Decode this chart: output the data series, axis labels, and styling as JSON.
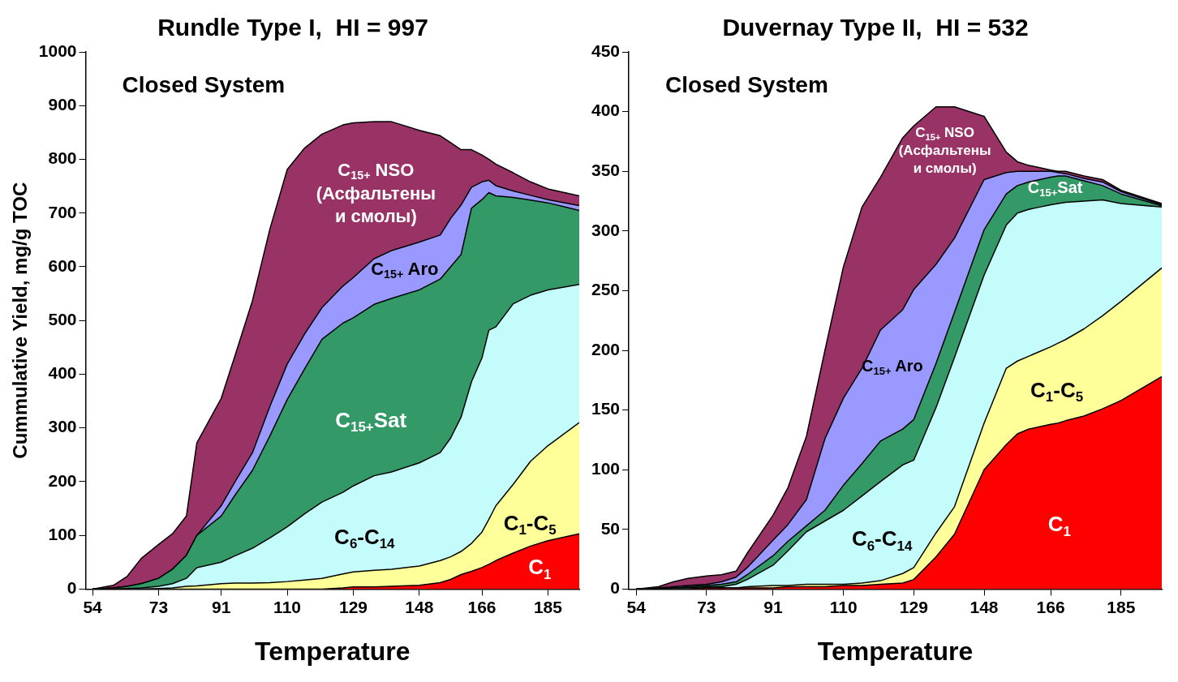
{
  "chart_data": [
    {
      "type": "area",
      "stacked": true,
      "title": "Rundle Type I,  HI = 997",
      "xlabel": "Temperature",
      "ylabel": "Cummulative Yield, mg/g TOC",
      "annotations": [
        "Closed System"
      ],
      "grid": false,
      "legend": false,
      "x": [
        54,
        60,
        64,
        68,
        73,
        77,
        81,
        84,
        91,
        95,
        100,
        105,
        110,
        115,
        120,
        126,
        129,
        135,
        140,
        148,
        154,
        157,
        160,
        163,
        166,
        168,
        170,
        175,
        180,
        185,
        194
      ],
      "xlim": [
        52,
        194
      ],
      "xticks": [
        54,
        73,
        91,
        110,
        129,
        148,
        166,
        185
      ],
      "ylim": [
        0,
        1000
      ],
      "yticks": [
        0,
        100,
        200,
        300,
        400,
        500,
        600,
        700,
        800,
        900,
        1000
      ],
      "series": [
        {
          "name": "C$_{1}$",
          "color": "#ff0000",
          "values": [
            0,
            0,
            0,
            0,
            0,
            0,
            0,
            0,
            0,
            0,
            0,
            0,
            0,
            0,
            0,
            2,
            4,
            4,
            5,
            7,
            12,
            18,
            27,
            33,
            40,
            46,
            53,
            67,
            80,
            90,
            103
          ]
        },
        {
          "name": "C$_{1}$-C$_{5}$",
          "color": "#ffff99",
          "values": [
            0,
            0,
            0,
            0,
            1,
            2,
            5,
            6,
            10,
            11,
            11,
            12,
            14,
            17,
            20,
            26,
            28,
            31,
            32,
            36,
            41,
            42,
            43,
            52,
            66,
            84,
            102,
            128,
            158,
            177,
            207
          ]
        },
        {
          "name": "C$_{6}$-C$_{14}$",
          "color": "#c4fcfc",
          "values": [
            0,
            0,
            1,
            2,
            4,
            8,
            15,
            34,
            40,
            51,
            65,
            83,
            102,
            123,
            142,
            152,
            160,
            176,
            181,
            192,
            201,
            221,
            250,
            301,
            324,
            352,
            333,
            336,
            309,
            290,
            257
          ]
        },
        {
          "name": "C$_{15+}$Sat",
          "color": "#339966",
          "values": [
            0,
            2,
            4,
            8,
            15,
            27,
            43,
            60,
            86,
            113,
            145,
            190,
            237,
            270,
            303,
            315,
            313,
            319,
            323,
            322,
            323,
            319,
            303,
            323,
            295,
            256,
            244,
            198,
            177,
            162,
            138
          ]
        },
        {
          "name": "C$_{15+}$ Aro",
          "color": "#9999ff",
          "values": [
            0,
            0,
            0,
            0,
            0,
            0,
            0,
            0,
            19,
            25,
            33,
            55,
            66,
            65,
            59,
            69,
            75,
            85,
            89,
            89,
            82,
            90,
            92,
            39,
            33,
            23,
            19,
            12,
            9,
            6,
            9
          ]
        },
        {
          "name": "C$_{15+}$ NSO\n(Асфальтены\nи смолы)",
          "color": "#993366",
          "values": [
            0,
            5,
            19,
            47,
            63,
            66,
            73,
            172,
            200,
            235,
            283,
            330,
            362,
            346,
            323,
            300,
            288,
            255,
            240,
            208,
            185,
            141,
            103,
            70,
            50,
            39,
            40,
            34,
            25,
            20,
            18
          ]
        }
      ]
    },
    {
      "type": "area",
      "stacked": true,
      "title": "Duvernay Type II,  HI = 532",
      "xlabel": "Temperature",
      "annotations": [
        "Closed System"
      ],
      "grid": false,
      "legend": false,
      "x": [
        54,
        60,
        64,
        68,
        73,
        77,
        81,
        84,
        91,
        95,
        100,
        105,
        110,
        115,
        120,
        126,
        129,
        135,
        140,
        148,
        154,
        157,
        160,
        163,
        166,
        168,
        170,
        175,
        180,
        185,
        196
      ],
      "xlim": [
        52,
        196
      ],
      "xticks": [
        54,
        73,
        91,
        110,
        129,
        148,
        166,
        185
      ],
      "ylim": [
        0,
        450
      ],
      "yticks": [
        0,
        50,
        100,
        150,
        200,
        250,
        300,
        350,
        400,
        450
      ],
      "series": [
        {
          "name": "C$_{1}$",
          "color": "#ff0000",
          "values": [
            0,
            0,
            0,
            0,
            1,
            1,
            1,
            1,
            1,
            2,
            2,
            2,
            3,
            3,
            4,
            5,
            8,
            27,
            46,
            100,
            121,
            130,
            134,
            136,
            138,
            139,
            141,
            145,
            151,
            158,
            178
          ]
        },
        {
          "name": "C$_{1}$-C$_{5}$",
          "color": "#ffff99",
          "values": [
            0,
            0,
            0,
            0,
            0,
            0,
            0,
            1,
            2,
            1,
            2,
            2,
            1,
            2,
            3,
            8,
            10,
            20,
            23,
            39,
            64,
            61,
            61,
            63,
            65,
            67,
            68,
            73,
            78,
            83,
            91
          ]
        },
        {
          "name": "C$_{6}$-C$_{14}$",
          "color": "#c4fcfc",
          "values": [
            0,
            0,
            1,
            1,
            1,
            1,
            3,
            6,
            17,
            29,
            44,
            53,
            62,
            73,
            83,
            91,
            90,
            105,
            125,
            124,
            120,
            124,
            123,
            121,
            119,
            117,
            115,
            107,
            97,
            82,
            51
          ]
        },
        {
          "name": "C$_{15+}$Sat",
          "color": "#339966",
          "values": [
            0,
            0,
            0,
            1,
            1,
            2,
            2,
            4,
            8,
            8,
            5,
            9,
            21,
            27,
            34,
            30,
            34,
            37,
            38,
            38,
            26,
            23,
            23,
            23,
            23,
            23,
            22,
            17,
            12,
            8,
            1
          ]
        },
        {
          "name": "C$_{15+}$ Aro",
          "color": "#9999ff",
          "values": [
            0,
            1,
            1,
            1,
            1,
            2,
            4,
            6,
            13,
            14,
            22,
            60,
            73,
            80,
            93,
            100,
            109,
            83,
            62,
            42,
            18,
            12,
            9,
            7,
            5,
            3,
            2,
            2,
            3,
            2,
            1
          ]
        },
        {
          "name": "C$_{15+}$ NSO\n(Асфальтены\nи смолы)",
          "color": "#993366",
          "values": [
            0,
            1,
            4,
            6,
            7,
            6,
            5,
            12,
            21,
            31,
            53,
            74,
            110,
            135,
            128,
            144,
            137,
            132,
            110,
            53,
            17,
            8,
            5,
            3,
            1,
            1,
            2,
            2,
            2,
            1,
            1
          ]
        }
      ]
    }
  ]
}
